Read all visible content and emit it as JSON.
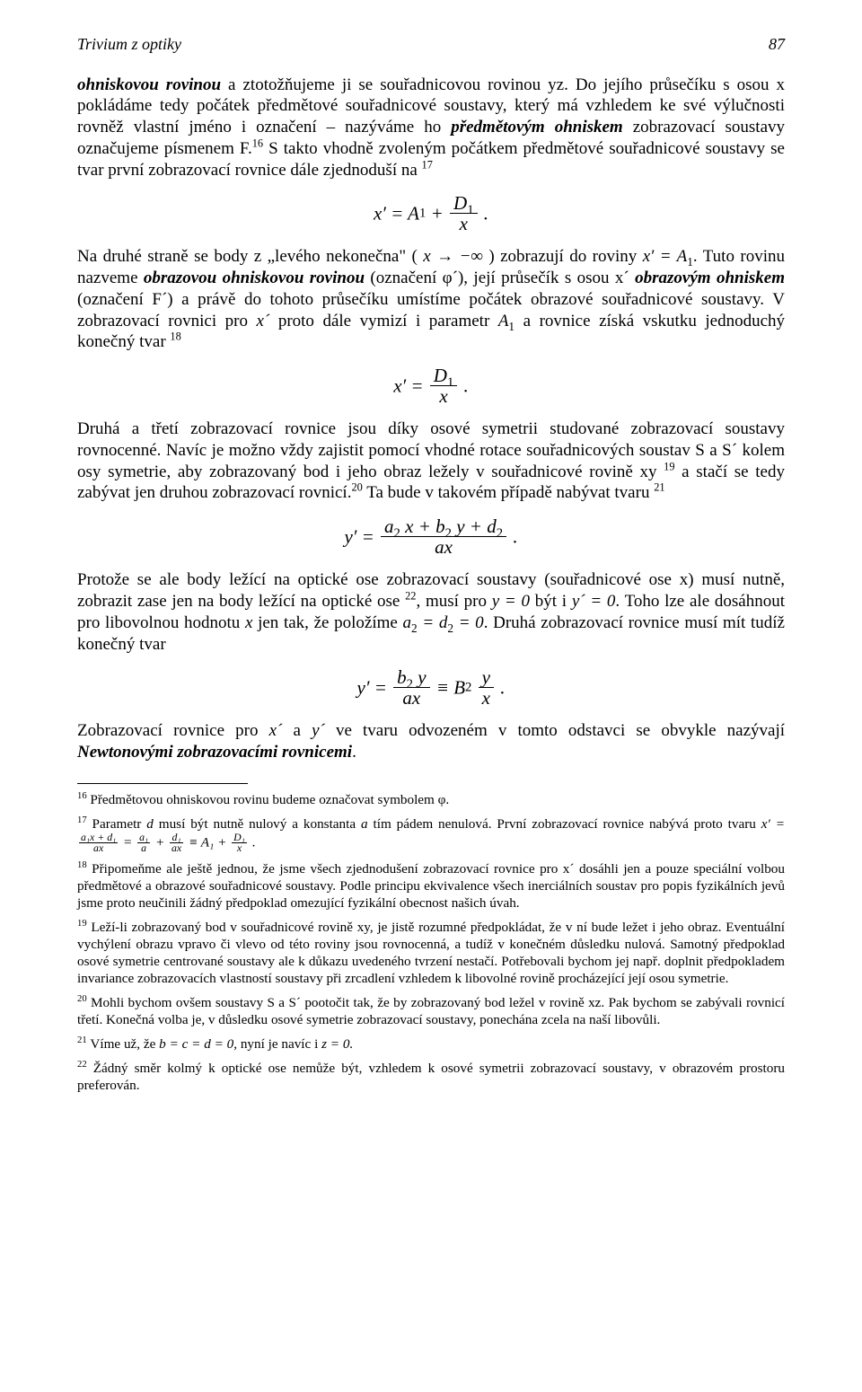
{
  "header": {
    "running_title": "Trivium z optiky",
    "page_number": "87"
  },
  "para1_a": "ohniskovou rovinou",
  "para1_b": " a ztotožňujeme ji se souřadnicovou rovinou yz. Do jejího průsečíku s osou x pokládáme tedy počátek předmětové souřadnicové soustavy, který má vzhledem ke své výlučnosti rovněž vlastní jméno i označení – nazýváme ho ",
  "para1_c": "předmětovým ohniskem",
  "para1_d": " zobrazovací soustavy označujeme písmenem F.",
  "fn16_marker": "16",
  "para1_e": " S takto vhodně zvoleným počátkem předmětové souřadnicové soustavy se tvar první zobrazovací rovnice dále zjednoduší na ",
  "fn17_marker": "17",
  "formula1": {
    "lhs": "x′ = A",
    "A_sub": "1",
    "plus": " + ",
    "num": "D",
    "num_sub": "1",
    "den": "x",
    "tail": " ."
  },
  "para2_a": "Na druhé straně se body z „levého nekonečna\" ( ",
  "para2_limit": "x → −∞",
  "para2_b": " ) zobrazují do roviny ",
  "para2_eq": "x′ = A",
  "para2_eq_sub": "1",
  "para2_c": ". Tuto rovinu nazveme ",
  "para2_d": "obrazovou ohniskovou rovinou",
  "para2_e": " (označení φ´), její průsečík s osou x´ ",
  "para2_f": "obrazovým ohniskem",
  "para2_g": " (označení F´) a právě do tohoto průsečíku umístíme počátek obrazové souřadnicové soustavy. V zobrazovací rovnici pro ",
  "para2_h": "x´",
  "para2_i": " proto dále vymizí i parametr ",
  "para2_j": "A",
  "para2_j_sub": "1",
  "para2_k": " a rovnice získá vskutku jednoduchý konečný tvar ",
  "fn18_marker": "18",
  "formula2": {
    "lhs": "x′ = ",
    "num": "D",
    "num_sub": "1",
    "den": "x",
    "tail": " ."
  },
  "para3_a": "Druhá a třetí zobrazovací rovnice jsou díky osové symetrii studované zobrazovací soustavy rovnocenné. Navíc je možno vždy zajistit pomocí vhodné rotace souřadnicových soustav S a S´ kolem osy symetrie, aby zobrazovaný bod i jeho obraz ležely v souřadnicové rovině xy ",
  "fn19_marker": "19",
  "para3_b": " a stačí se tedy zabývat jen druhou zobrazovací rovnicí.",
  "fn20_marker": "20",
  "para3_c": " Ta bude v takovém případě nabývat tvaru ",
  "fn21_marker": "21",
  "formula3": {
    "lhs": "y′ = ",
    "num_a": "a",
    "num_a_sub": "2",
    "num_mid1": " x + b",
    "num_b_sub": "2",
    "num_mid2": " y + d",
    "num_d_sub": "2",
    "den": "ax",
    "tail": " ."
  },
  "para4_a": "Protože se ale body ležící na optické ose zobrazovací soustavy (souřadnicové ose x) musí nutně, zobrazit zase jen na body ležící na optické ose ",
  "fn22_marker": "22",
  "para4_b": ", musí pro ",
  "para4_c": "y = 0",
  "para4_d": " být i ",
  "para4_e": "y´ = 0",
  "para4_f": ". Toho lze ale dosáhnout pro libovolnou hodnotu ",
  "para4_g": "x",
  "para4_h": " jen tak, že položíme ",
  "para4_i": "a",
  "para4_i_sub": "2",
  "para4_j": " = d",
  "para4_j_sub": "2",
  "para4_k": " = 0",
  "para4_l": ". Druhá zobrazovací rovnice musí mít tudíž konečný tvar",
  "formula4": {
    "lhs": "y′ = ",
    "num1": "b",
    "num1_sub": "2",
    "num1_tail": " y",
    "den1": "ax",
    "equiv": " ≡ B",
    "B_sub": "2",
    "num2": "y",
    "den2": "x",
    "tail": " ."
  },
  "para5_a": "Zobrazovací rovnice pro ",
  "para5_b": "x´",
  "para5_c": " a ",
  "para5_d": "y´",
  "para5_e": " ve tvaru odvozeném v tomto odstavci se obvykle nazývají ",
  "para5_f": "Newtonovými zobrazovacími rovnicemi",
  "para5_g": ".",
  "footnotes": {
    "16": "Předmětovou ohniskovou rovinu budeme označovat symbolem φ.",
    "17a": "Parametr ",
    "17b": "d",
    "17c": " musí být nutně nulový a konstanta ",
    "17d": "a",
    "17e": " tím pádem nenulová. První zobrazovací rovnice nabývá proto tvaru ",
    "17_eq_lhs": "x′ = ",
    "17_frac1_n": "a₁x + d₁",
    "17_frac1_d": "ax",
    "17_eq_mid1": " = ",
    "17_frac2_n": "a₁",
    "17_frac2_d": "a",
    "17_eq_mid2": " + ",
    "17_frac3_n": "d₁",
    "17_frac3_d": "ax",
    "17_eq_mid3": " ≡ A₁ + ",
    "17_frac4_n": "D₁",
    "17_frac4_d": "x",
    "17_eq_tail": " .",
    "18": "Připomeňme ale ještě jednou, že jsme všech zjednodušení zobrazovací rovnice pro x´ dosáhli jen a pouze speciální volbou předmětové a obrazové souřadnicové soustavy. Podle principu ekvivalence všech inerciálních soustav pro popis fyzikálních jevů jsme proto neučinili žádný předpoklad omezující fyzikální obecnost našich úvah.",
    "19": "Leží-li zobrazovaný bod v souřadnicové rovině xy, je jistě rozumné předpokládat, že v ní bude ležet i jeho obraz. Eventuální vychýlení obrazu vpravo či vlevo od této roviny jsou rovnocenná, a tudíž v konečném důsledku nulová. Samotný předpoklad osové symetrie centrované soustavy ale k důkazu uvedeného tvrzení nestačí. Potřebovali bychom jej např. doplnit předpokladem invariance zobrazovacích vlastností soustavy při zrcadlení vzhledem k libovolné rovině procházející její osou symetrie.",
    "20": "Mohli bychom ovšem soustavy S a S´ pootočit tak, že by zobrazovaný bod ležel v rovině xz. Pak bychom se zabývali rovnicí třetí. Konečná volba je, v důsledku osové symetrie zobrazovací soustavy, ponechána zcela na naší libovůli.",
    "21a": "Víme už, že ",
    "21b": "b = c = d = 0",
    "21c": ", nyní je navíc i  ",
    "21d": "z = 0.",
    "22": "Žádný směr kolmý k optické ose nemůže být, vzhledem k osové symetrii zobrazovací soustavy, v obrazovém prostoru preferován."
  }
}
